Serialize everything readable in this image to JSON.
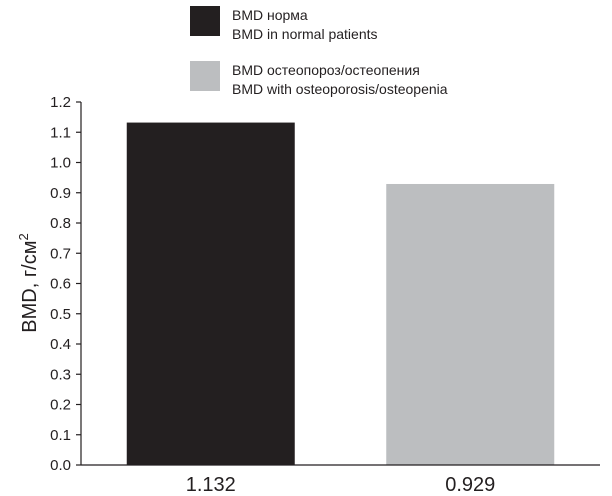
{
  "chart_data": {
    "type": "bar",
    "categories": [
      "1.132",
      "0.929"
    ],
    "values": [
      1.132,
      0.929
    ],
    "ylabel_main": "BMD, г/см",
    "ylabel_sup": "2",
    "ylim": [
      0,
      1.2
    ],
    "yticks": [
      "0.0",
      "0.1",
      "0.2",
      "0.3",
      "0.4",
      "0.5",
      "0.6",
      "0.7",
      "0.8",
      "0.9",
      "1.0",
      "1.1",
      "1.2"
    ],
    "legend_placement": "top",
    "series_colors": [
      "#231f20",
      "#bcbec0"
    ]
  },
  "legend": {
    "items": [
      {
        "line1": "BMD норма",
        "line2": "BMD in normal patients",
        "color": "#231f20"
      },
      {
        "line1": "BMD остеопороз/остеопения",
        "line2": "BMD with osteoporosis/osteopenia",
        "color": "#bcbec0"
      }
    ]
  }
}
